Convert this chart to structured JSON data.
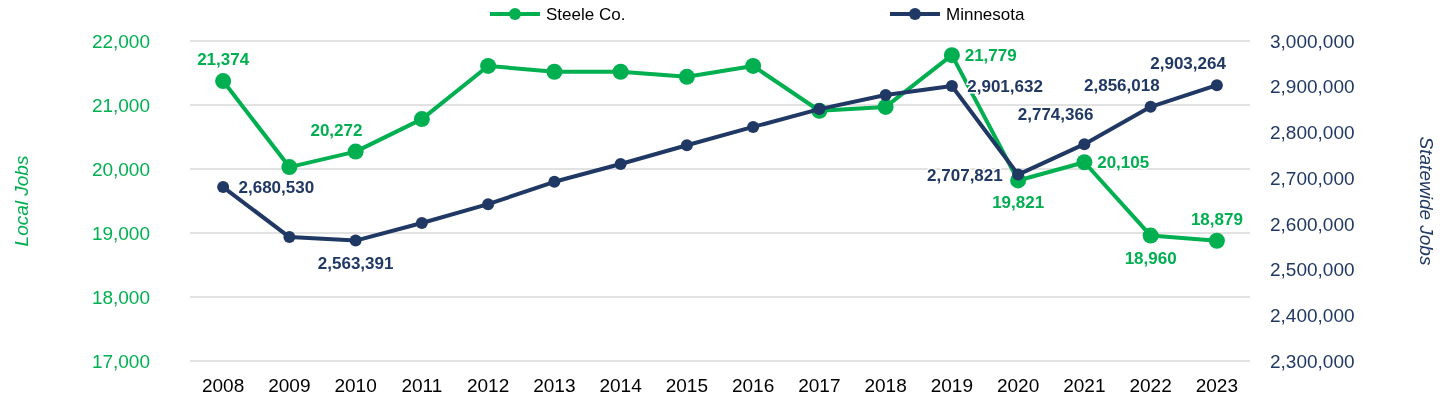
{
  "chart_data": {
    "type": "line",
    "xlabel": null,
    "ylabel": "Local Jobs",
    "y2label": "Statewide Jobs",
    "categories": [
      "2008",
      "2009",
      "2010",
      "2011",
      "2012",
      "2013",
      "2014",
      "2015",
      "2016",
      "2017",
      "2018",
      "2019",
      "2020",
      "2021",
      "2022",
      "2023"
    ],
    "series": [
      {
        "name": "Steele Co.",
        "color": "#00b050",
        "values": [
          21374,
          20030,
          20272,
          20780,
          21610,
          21520,
          21520,
          21440,
          21610,
          20910,
          20970,
          21779,
          19821,
          20105,
          18960,
          18879
        ],
        "value_labels": [
          "21,374",
          null,
          "20,272",
          null,
          null,
          null,
          null,
          null,
          null,
          null,
          null,
          "21,779",
          "19,821",
          "20,105",
          "18,960",
          "18,879"
        ]
      },
      {
        "name": "Minnesota",
        "color": "#203864",
        "axis": "y2",
        "values": [
          2680530,
          2571000,
          2563391,
          2602000,
          2643000,
          2692000,
          2731000,
          2772000,
          2812000,
          2851000,
          2882000,
          2901632,
          2707821,
          2774366,
          2856018,
          2903264
        ],
        "value_labels": [
          "2,680,530",
          null,
          "2,563,391",
          null,
          null,
          null,
          null,
          null,
          null,
          null,
          null,
          "2,901,632",
          "2,707,821",
          "2,774,366",
          "2,856,018",
          "2,903,264"
        ]
      }
    ],
    "ylim": [
      17000,
      22000
    ],
    "yticks": [
      {
        "value": 17000,
        "label": "17,000"
      },
      {
        "value": 18000,
        "label": "18,000"
      },
      {
        "value": 19000,
        "label": "19,000"
      },
      {
        "value": 20000,
        "label": "20,000"
      },
      {
        "value": 21000,
        "label": "21,000"
      },
      {
        "value": 22000,
        "label": "22,000"
      }
    ],
    "y2lim": [
      2300000,
      3000000
    ],
    "y2ticks": [
      {
        "value": 2300000,
        "label": "2,300,000"
      },
      {
        "value": 2400000,
        "label": "2,400,000"
      },
      {
        "value": 2500000,
        "label": "2,500,000"
      },
      {
        "value": 2600000,
        "label": "2,600,000"
      },
      {
        "value": 2700000,
        "label": "2,700,000"
      },
      {
        "value": 2800000,
        "label": "2,800,000"
      },
      {
        "value": 2900000,
        "label": "2,900,000"
      },
      {
        "value": 3000000,
        "label": "3,000,000"
      }
    ],
    "grid": "y",
    "legend": "top",
    "marker": "circle",
    "line_style": "solid"
  }
}
